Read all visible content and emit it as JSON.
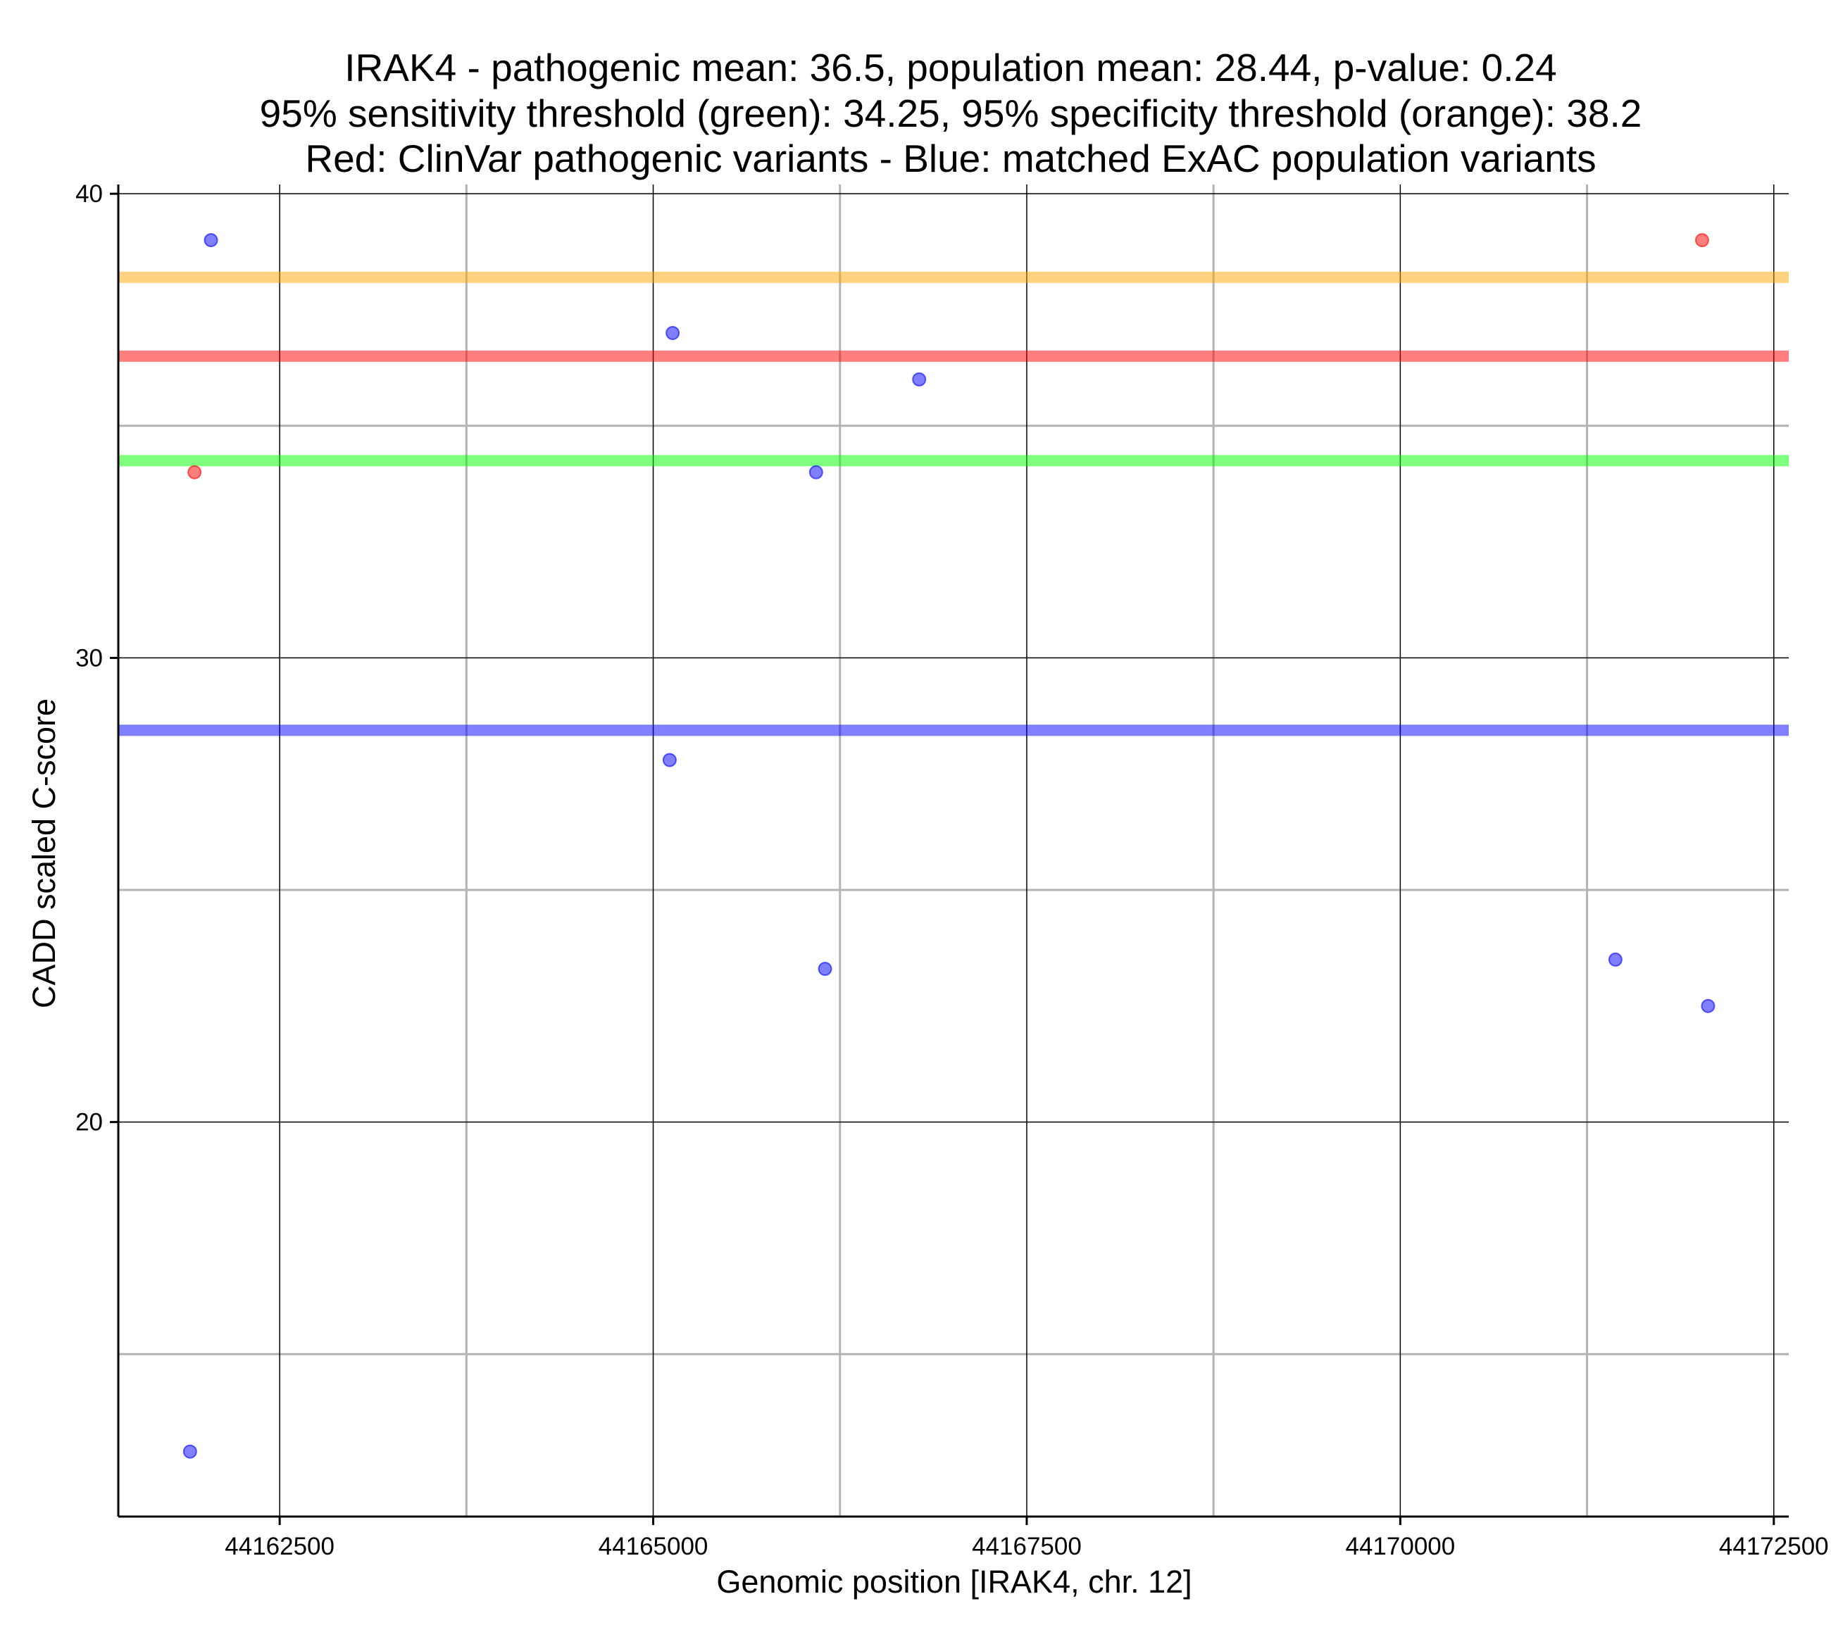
{
  "chart_data": {
    "type": "scatter",
    "title_lines": [
      "IRAK4 - pathogenic mean: 36.5, population mean: 28.44, p-value: 0.24",
      "95% sensitivity threshold (green): 34.25, 95% specificity threshold (orange): 38.2",
      "Red: ClinVar pathogenic variants - Blue: matched ExAC population variants"
    ],
    "xlabel": "Genomic position [IRAK4, chr. 12]",
    "ylabel": "CADD scaled C-score",
    "xlim": [
      44161420,
      44172600
    ],
    "ylim": [
      11.5,
      40.2
    ],
    "x_ticks": [
      {
        "value": 44162500,
        "label": "44162500"
      },
      {
        "value": 44165000,
        "label": "44165000"
      },
      {
        "value": 44167500,
        "label": "44167500"
      },
      {
        "value": 44170000,
        "label": "44170000"
      },
      {
        "value": 44172500,
        "label": "44172500"
      }
    ],
    "x_minor_ticks": [
      44163750,
      44166250,
      44168750,
      44171250
    ],
    "y_ticks": [
      {
        "value": 20,
        "label": "20"
      },
      {
        "value": 30,
        "label": "30"
      },
      {
        "value": 40,
        "label": "40"
      }
    ],
    "y_minor_ticks": [
      15,
      25,
      35
    ],
    "reference_lines": [
      {
        "name": "specificity-threshold",
        "value": 38.2,
        "color": "#ffa500"
      },
      {
        "name": "pathogenic-mean",
        "value": 36.5,
        "color": "#ff0000"
      },
      {
        "name": "sensitivity-threshold",
        "value": 34.25,
        "color": "#00ff00"
      },
      {
        "name": "population-mean",
        "value": 28.44,
        "color": "#0000ff"
      }
    ],
    "series": [
      {
        "name": "ClinVar pathogenic variants",
        "color": "#ff0000",
        "points": [
          {
            "x": 44161930,
            "y": 34.0
          },
          {
            "x": 44172020,
            "y": 39.0
          }
        ]
      },
      {
        "name": "matched ExAC population variants",
        "color": "#0000ff",
        "points": [
          {
            "x": 44162040,
            "y": 39.0
          },
          {
            "x": 44161900,
            "y": 12.9
          },
          {
            "x": 44165130,
            "y": 37.0
          },
          {
            "x": 44165110,
            "y": 27.8
          },
          {
            "x": 44166090,
            "y": 34.0
          },
          {
            "x": 44166150,
            "y": 23.3
          },
          {
            "x": 44166780,
            "y": 36.0
          },
          {
            "x": 44171440,
            "y": 23.5
          },
          {
            "x": 44172060,
            "y": 22.5
          }
        ]
      }
    ]
  }
}
